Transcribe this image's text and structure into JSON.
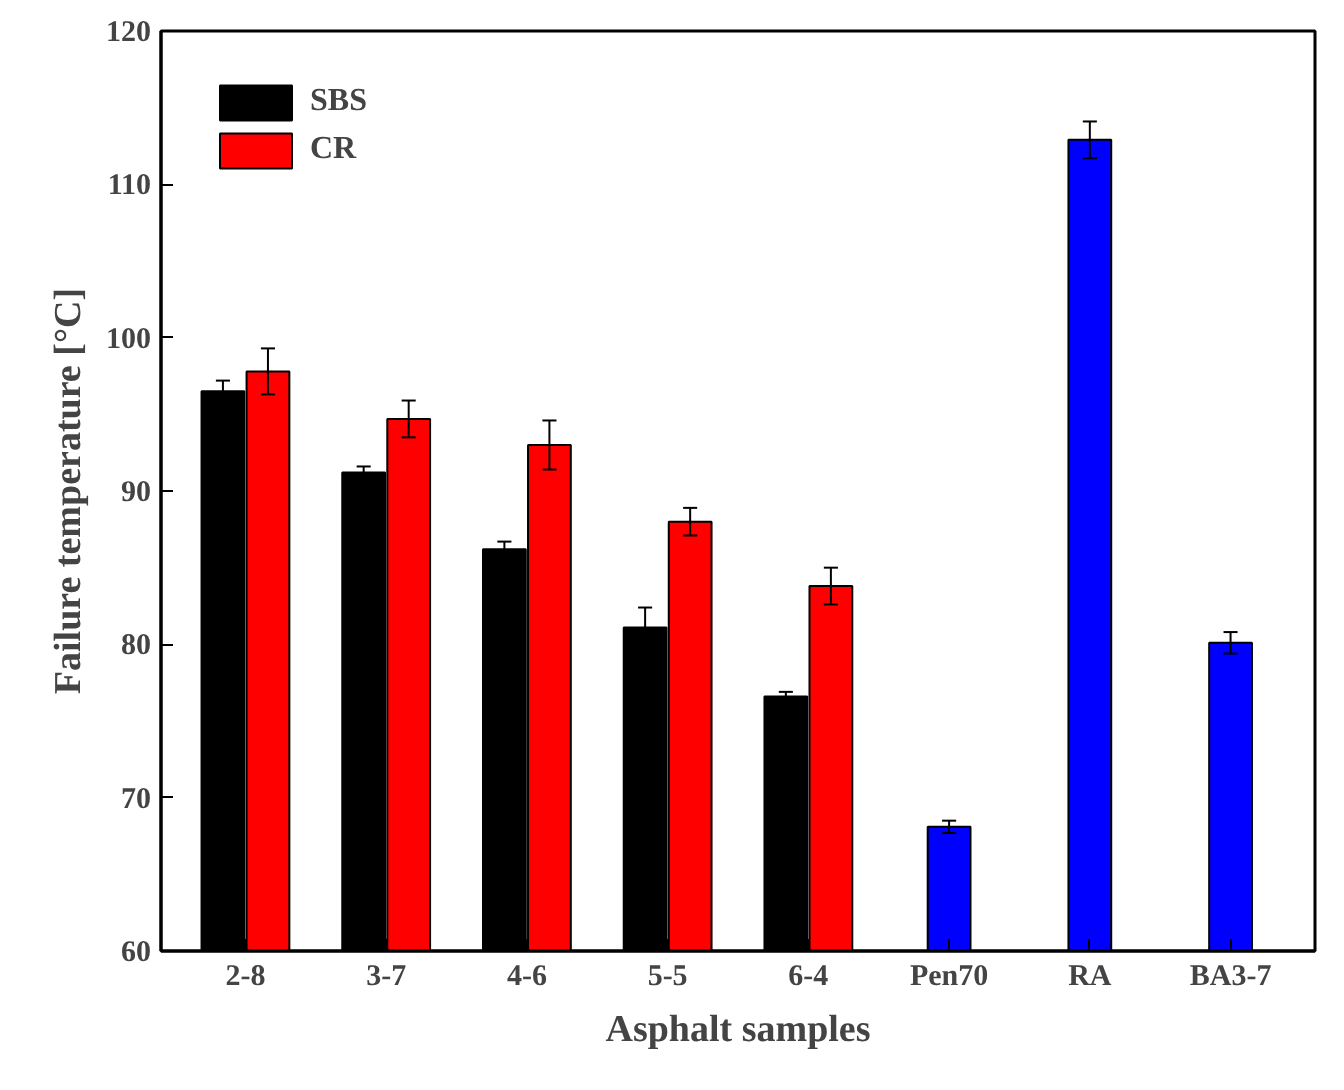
{
  "chart_data": {
    "type": "bar",
    "xlabel": "Asphalt samples",
    "ylabel": "Failure temperature [°C]",
    "categories": [
      "2-8",
      "3-7",
      "4-6",
      "5-5",
      "6-4",
      "Pen70",
      "RA",
      "BA3-7"
    ],
    "series": [
      {
        "name": "SBS",
        "color": "#000000",
        "values": [
          96.5,
          91.2,
          86.2,
          81.1,
          76.6,
          null,
          null,
          null
        ],
        "errors": [
          0.7,
          0.4,
          0.5,
          1.3,
          0.3,
          null,
          null,
          null
        ]
      },
      {
        "name": "CR",
        "color": "#ff0000",
        "values": [
          97.8,
          94.7,
          93.0,
          88.0,
          83.8,
          null,
          null,
          null
        ],
        "errors": [
          1.5,
          1.2,
          1.6,
          0.9,
          1.2,
          null,
          null,
          null
        ]
      },
      {
        "color": "#0000ff",
        "values": [
          null,
          null,
          null,
          null,
          null,
          68.1,
          112.9,
          80.1
        ],
        "errors": [
          null,
          null,
          null,
          null,
          null,
          0.4,
          1.2,
          0.7
        ]
      }
    ],
    "ylim": [
      60,
      120
    ],
    "yticks": [
      60,
      70,
      80,
      90,
      100,
      110,
      120
    ],
    "grid": false,
    "legend": "top left"
  }
}
